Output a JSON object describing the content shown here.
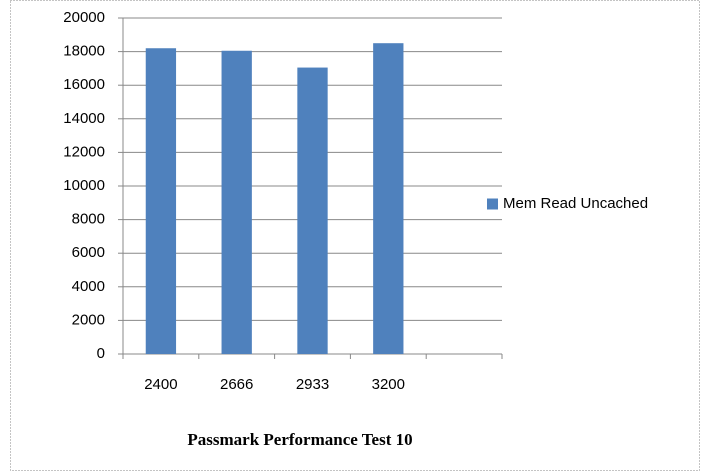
{
  "chart_data": {
    "type": "bar",
    "title": "Passmark Performance Test 10",
    "categories": [
      "2400",
      "2666",
      "2933",
      "3200",
      null
    ],
    "series": [
      {
        "name": "Mem Read Uncached",
        "color": "#4f81bd",
        "values": [
          18200,
          18050,
          17050,
          18500,
          null
        ]
      }
    ],
    "ylim": [
      0,
      20000
    ],
    "yticks": [
      0,
      2000,
      4000,
      6000,
      8000,
      10000,
      12000,
      14000,
      16000,
      18000,
      20000
    ],
    "grid": true,
    "legend": "right"
  }
}
